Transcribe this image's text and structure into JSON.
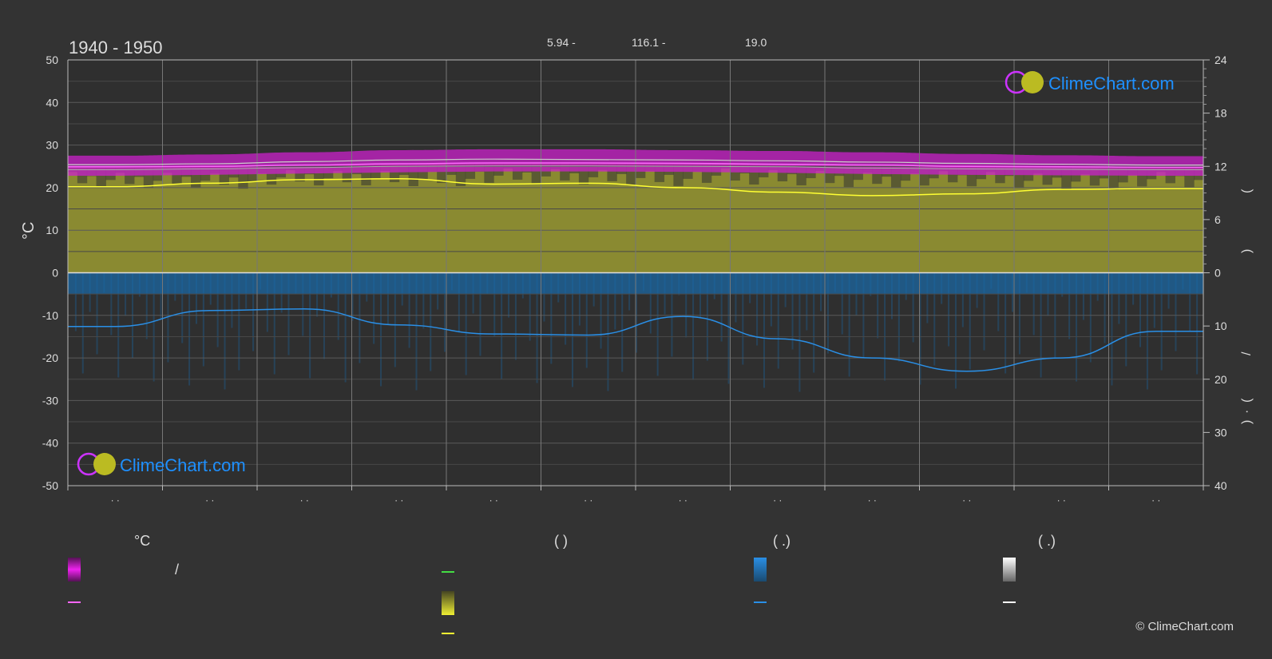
{
  "title": "1940 - 1950",
  "header_stats": {
    "a": "5.94 -",
    "b": "116.1 -",
    "c": "19.0"
  },
  "left_axis": {
    "label": "°C",
    "ticks": [
      50,
      40,
      30,
      20,
      10,
      0,
      -10,
      -20,
      -30,
      -40,
      -50
    ]
  },
  "right_axis": {
    "upper_ticks": [
      24,
      18,
      12,
      6,
      0
    ],
    "lower_ticks": [
      10,
      20,
      30,
      40
    ],
    "label_glyphs": [
      "(",
      ")",
      "(",
      ")",
      "/",
      "(",
      "·",
      ")"
    ]
  },
  "month_ticks": [
    "· ·",
    "· ·",
    "· ·",
    "· ·",
    "· ·",
    "· ·",
    "· ·",
    "· ·",
    "· ·",
    "· ·",
    "· ·",
    "· ·"
  ],
  "watermark": {
    "text": "ClimeChart.com"
  },
  "legend": {
    "col1_header": "°C",
    "col1_slash": "/",
    "col2_header": "(           )",
    "col3_header": "(    .)",
    "col4_header": "(    .)"
  },
  "copyright": "© ClimeChart.com",
  "colors": {
    "background": "#333333",
    "temp_band": "#cc22cc",
    "temp_mean": "#ff66ff",
    "daylight": "#dddddd",
    "sunshine_band": "#aaaa33",
    "sunshine_line": "#ffff33",
    "precip_band": "#1a6aa8",
    "precip_line": "#2a8fe6",
    "green_line": "#44dd44",
    "brand_blue": "#1e90ff"
  },
  "chart_data": {
    "type": "line",
    "x_months": [
      1,
      2,
      3,
      4,
      5,
      6,
      7,
      8,
      9,
      10,
      11,
      12
    ],
    "ylim_left": [
      -50,
      50
    ],
    "ylim_right_upper": [
      0,
      24
    ],
    "ylim_right_lower": [
      0,
      40
    ],
    "grid": true,
    "series": [
      {
        "key": "temp_max_band_top",
        "values": [
          27.5,
          27.8,
          28.3,
          28.8,
          29.0,
          29.0,
          28.8,
          28.6,
          28.3,
          27.9,
          27.6,
          27.4
        ]
      },
      {
        "key": "temp_max",
        "values": [
          25.4,
          25.6,
          26.1,
          26.5,
          26.7,
          26.6,
          26.5,
          26.3,
          26.0,
          25.7,
          25.5,
          25.3
        ]
      },
      {
        "key": "temp_mean",
        "values": [
          24.9,
          25.0,
          25.3,
          25.6,
          25.8,
          25.8,
          25.7,
          25.5,
          25.3,
          25.0,
          24.9,
          24.8
        ]
      },
      {
        "key": "temp_min",
        "values": [
          24.2,
          24.4,
          24.7,
          25.0,
          25.1,
          25.1,
          25.0,
          24.9,
          24.6,
          24.4,
          24.3,
          24.2
        ]
      },
      {
        "key": "temp_min_band_bottom",
        "values": [
          22.8,
          23.0,
          23.3,
          23.6,
          23.8,
          23.8,
          23.7,
          23.5,
          23.2,
          23.0,
          22.9,
          22.8
        ]
      },
      {
        "key": "daylight_hours",
        "values": [
          11.9,
          12.0,
          12.1,
          12.2,
          12.3,
          12.3,
          12.3,
          12.2,
          12.1,
          12.0,
          11.9,
          11.9
        ]
      },
      {
        "key": "sunshine_hours",
        "values": [
          9.7,
          10.1,
          10.5,
          10.6,
          10.0,
          10.1,
          9.6,
          9.1,
          8.7,
          8.9,
          9.4,
          9.5
        ]
      },
      {
        "key": "precipitation_mm",
        "values": [
          10.1,
          7.1,
          6.8,
          9.8,
          11.5,
          11.7,
          8.2,
          12.4,
          16.0,
          18.5,
          16.0,
          11.0
        ]
      }
    ]
  }
}
